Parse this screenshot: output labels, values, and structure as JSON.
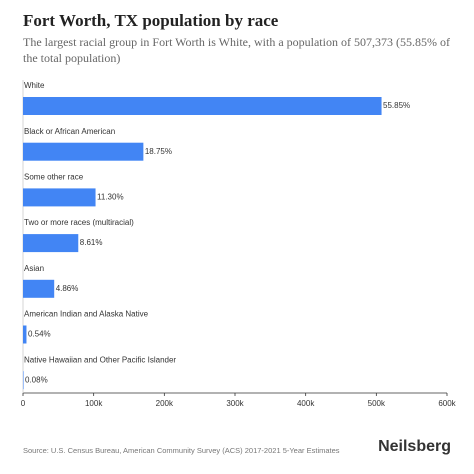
{
  "chart_data": {
    "type": "bar",
    "orientation": "horizontal",
    "title": "Fort Worth, TX population by race",
    "subtitle": "The largest racial group in Fort Worth is White, with a population of 507,373 (55.85% of the total population)",
    "categories": [
      "White",
      "Black or African American",
      "Some other race",
      "Two or more races (multiracial)",
      "Asian",
      "American Indian and Alaska Native",
      "Native Hawaiian and Other Pacific Islander"
    ],
    "values": [
      507373,
      170336,
      102656,
      78218,
      44151,
      4906,
      727
    ],
    "value_labels": [
      "55.85%",
      "18.75%",
      "11.30%",
      "8.61%",
      "4.86%",
      "0.54%",
      "0.08%"
    ],
    "color": "#4285f4",
    "xlim": [
      0,
      600000
    ],
    "xticks": [
      0,
      {
        "value": 100000,
        "label": "100k"
      },
      {
        "value": 200000,
        "label": "200k"
      },
      {
        "value": 300000,
        "label": "300k"
      },
      {
        "value": 400000,
        "label": "400k"
      },
      {
        "value": 500000,
        "label": "500k"
      },
      {
        "value": 600000,
        "label": "600k"
      }
    ],
    "source": "Source: U.S. Census Bureau, American Community Survey (ACS) 2017-2021 5-Year Estimates",
    "brand": "Neilsberg"
  }
}
